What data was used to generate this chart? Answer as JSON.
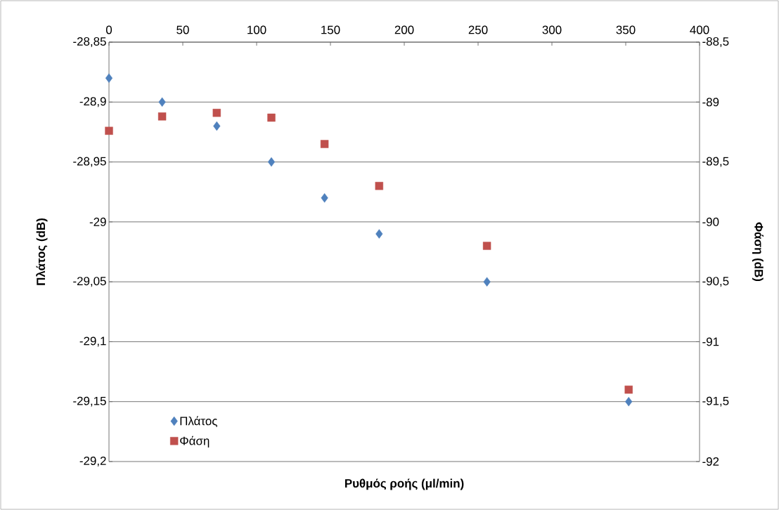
{
  "chart_data": {
    "type": "scatter",
    "xlabel": "Ρυθμός ροής (μl/min)",
    "ylabel": "Πλάτος (dB)",
    "y2label": "Φάση (dB)",
    "x": [
      0,
      36,
      73,
      110,
      146,
      183,
      256,
      352
    ],
    "series": [
      {
        "name": "Πλάτος",
        "color": "#4f81bd",
        "marker": "diamond",
        "values": [
          -28.88,
          -28.9,
          -28.92,
          -28.95,
          -28.98,
          -29.01,
          -29.05,
          -29.15
        ]
      },
      {
        "name": "Φάση",
        "color": "#c0504d",
        "marker": "square",
        "axis": "y2",
        "values": [
          -89.24,
          -89.12,
          -89.09,
          -89.13,
          -89.35,
          -89.7,
          -90.2,
          -91.4
        ]
      }
    ],
    "xlim": [
      0,
      400
    ],
    "xticks": [
      0,
      50,
      100,
      150,
      200,
      250,
      300,
      350,
      400
    ],
    "ylim": [
      -29.2,
      -28.85
    ],
    "yticks": [
      {
        "value": -29.2,
        "label": "-29,2"
      },
      {
        "value": -29.15,
        "label": "-29,15"
      },
      {
        "value": -29.1,
        "label": "-29,1"
      },
      {
        "value": -29.05,
        "label": "-29,05"
      },
      {
        "value": -29.0,
        "label": "-29"
      },
      {
        "value": -28.95,
        "label": "-28,95"
      },
      {
        "value": -28.9,
        "label": "-28,9"
      },
      {
        "value": -28.85,
        "label": "-28,85"
      }
    ],
    "y2lim": [
      -92,
      -88.5
    ],
    "y2ticks": [
      {
        "value": -92,
        "label": "-92"
      },
      {
        "value": -91.5,
        "label": "-91,5"
      },
      {
        "value": -91,
        "label": "-91"
      },
      {
        "value": -90.5,
        "label": "-90,5"
      },
      {
        "value": -90,
        "label": "-90"
      },
      {
        "value": -89.5,
        "label": "-89,5"
      },
      {
        "value": -89,
        "label": "-89"
      },
      {
        "value": -88.5,
        "label": "-88,5"
      }
    ],
    "grid": "y",
    "legend": "bottom left"
  }
}
